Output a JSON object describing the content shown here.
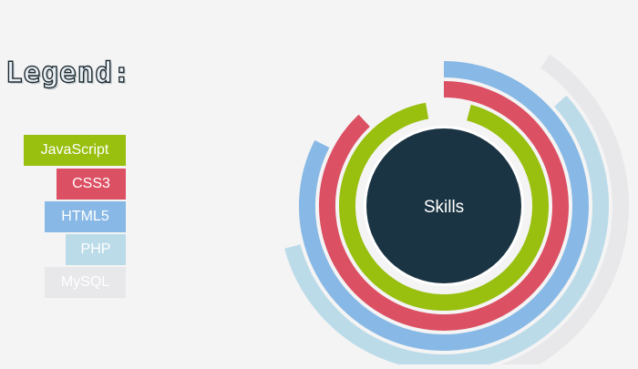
{
  "legend": {
    "title": "Legend:"
  },
  "chart_data": {
    "type": "radial-bar",
    "center_label": "Skills",
    "series": [
      {
        "name": "JavaScript",
        "color": "#99bf0f",
        "start_deg": 15,
        "sweep_deg": 335
      },
      {
        "name": "CSS3",
        "color": "#dc5064",
        "start_deg": 0,
        "sweep_deg": 317
      },
      {
        "name": "HTML5",
        "color": "#88b9e6",
        "start_deg": 0,
        "sweep_deg": 297
      },
      {
        "name": "PHP",
        "color": "#bcdbe9",
        "start_deg": 48,
        "sweep_deg": 207
      },
      {
        "name": "MySQL",
        "color": "#e8e7e9",
        "start_deg": 35,
        "sweep_deg": 125
      }
    ]
  }
}
